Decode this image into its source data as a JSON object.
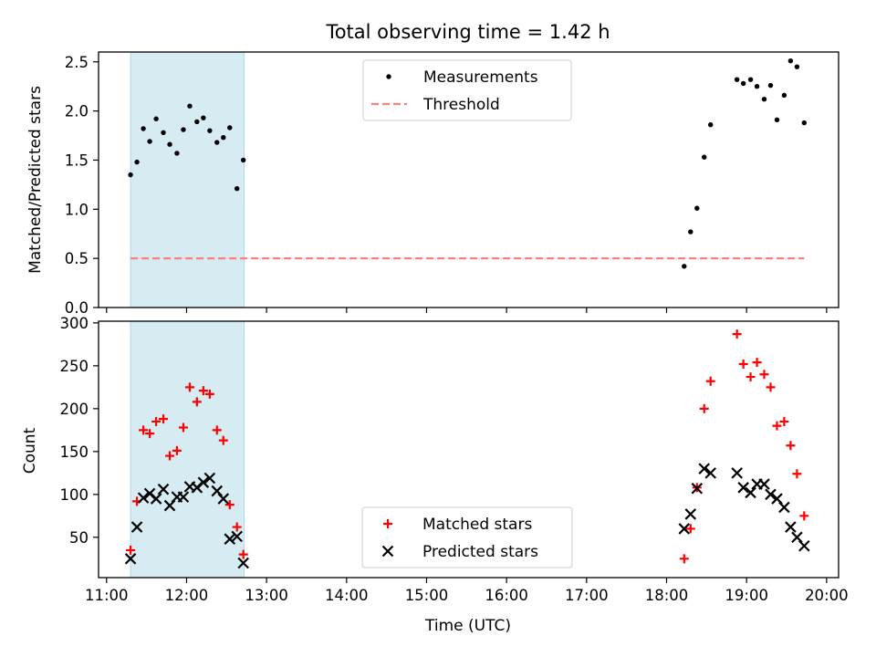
{
  "title": "Total observing time = 1.42 h",
  "colors": {
    "shade": "#add8e6",
    "measurement": "#000000",
    "threshold": "#ff7f7f",
    "matched": "#ff0000",
    "predicted": "#000000"
  },
  "chart_data": [
    {
      "type": "scatter",
      "ylabel": "Matched/Predicted stars",
      "xlabel": "",
      "xlim_hours": [
        10.9,
        20.15
      ],
      "ylim": [
        0,
        2.6
      ],
      "yticks": [
        0.0,
        0.5,
        1.0,
        1.5,
        2.0,
        2.5
      ],
      "ytick_labels": [
        "0.0",
        "0.5",
        "1.0",
        "1.5",
        "2.0",
        "2.5"
      ],
      "shaded_span_hours": [
        11.3,
        12.72
      ],
      "legend": {
        "position": "top-center",
        "entries": [
          "Measurements",
          "Threshold"
        ]
      },
      "series": [
        {
          "name": "Measurements",
          "marker": "dot",
          "x": [
            11.3,
            11.38,
            11.46,
            11.54,
            11.62,
            11.71,
            11.79,
            11.88,
            11.96,
            12.04,
            12.13,
            12.21,
            12.29,
            12.38,
            12.46,
            12.54,
            12.63,
            12.71,
            18.22,
            18.3,
            18.38,
            18.47,
            18.55,
            18.88,
            18.96,
            19.05,
            19.13,
            19.22,
            19.3,
            19.38,
            19.47,
            19.55,
            19.63,
            19.72
          ],
          "y": [
            1.35,
            1.48,
            1.82,
            1.69,
            1.92,
            1.78,
            1.66,
            1.57,
            1.81,
            2.05,
            1.89,
            1.93,
            1.8,
            1.68,
            1.73,
            1.83,
            1.21,
            1.5,
            0.42,
            0.77,
            1.01,
            1.53,
            1.86,
            2.32,
            2.28,
            2.32,
            2.25,
            2.12,
            2.26,
            1.91,
            2.16,
            2.51,
            2.45,
            1.88
          ]
        },
        {
          "name": "Threshold",
          "line": "dashed",
          "x": [
            11.3,
            19.72
          ],
          "y": [
            0.5,
            0.5
          ]
        }
      ]
    },
    {
      "type": "scatter",
      "ylabel": "Count",
      "xlabel": "Time (UTC)",
      "xlim_hours": [
        10.9,
        20.15
      ],
      "ylim": [
        3,
        302
      ],
      "yticks": [
        50,
        100,
        150,
        200,
        250,
        300
      ],
      "ytick_labels": [
        "50",
        "100",
        "150",
        "200",
        "250",
        "300"
      ],
      "xticks_hours": [
        11,
        12,
        13,
        14,
        15,
        16,
        17,
        18,
        19,
        20
      ],
      "xtick_labels": [
        "11:00",
        "12:00",
        "13:00",
        "14:00",
        "15:00",
        "16:00",
        "17:00",
        "18:00",
        "19:00",
        "20:00"
      ],
      "shaded_span_hours": [
        11.3,
        12.72
      ],
      "legend": {
        "position": "bottom-center",
        "entries": [
          "Matched stars",
          "Predicted stars"
        ]
      },
      "series": [
        {
          "name": "Matched stars",
          "marker": "plus",
          "x": [
            11.3,
            11.38,
            11.46,
            11.54,
            11.62,
            11.71,
            11.79,
            11.88,
            11.96,
            12.04,
            12.13,
            12.21,
            12.29,
            12.38,
            12.46,
            12.54,
            12.63,
            12.71,
            18.22,
            18.3,
            18.38,
            18.47,
            18.55,
            18.88,
            18.96,
            19.05,
            19.13,
            19.22,
            19.3,
            19.38,
            19.47,
            19.55,
            19.63,
            19.72
          ],
          "y": [
            35,
            92,
            175,
            171,
            185,
            188,
            145,
            151,
            178,
            225,
            208,
            221,
            217,
            175,
            163,
            88,
            62,
            30,
            25,
            60,
            108,
            200,
            232,
            287,
            252,
            237,
            254,
            240,
            225,
            180,
            185,
            157,
            124,
            75
          ]
        },
        {
          "name": "Predicted stars",
          "marker": "x",
          "x": [
            11.3,
            11.38,
            11.46,
            11.54,
            11.62,
            11.71,
            11.79,
            11.88,
            11.96,
            12.04,
            12.13,
            12.21,
            12.29,
            12.38,
            12.46,
            12.54,
            12.63,
            12.71,
            18.22,
            18.3,
            18.38,
            18.47,
            18.55,
            18.88,
            18.96,
            19.05,
            19.13,
            19.22,
            19.3,
            19.38,
            19.47,
            19.55,
            19.63,
            19.72
          ],
          "y": [
            25,
            62,
            96,
            101,
            95,
            106,
            87,
            97,
            97,
            109,
            108,
            114,
            119,
            104,
            95,
            48,
            51,
            20,
            60,
            77,
            107,
            130,
            125,
            125,
            108,
            102,
            112,
            112,
            100,
            95,
            85,
            62,
            50,
            40
          ]
        }
      ]
    }
  ]
}
